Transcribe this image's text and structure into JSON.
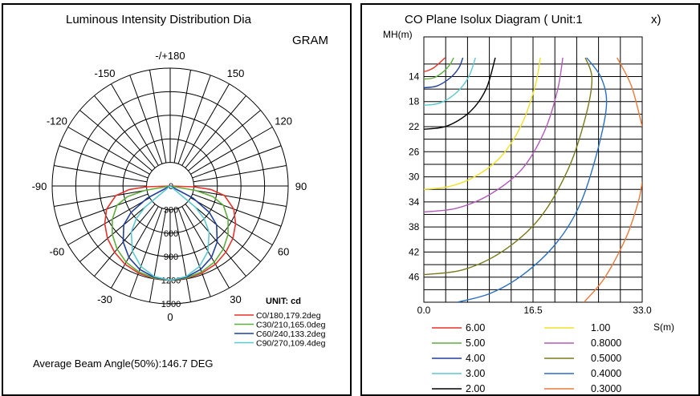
{
  "chart_data": [
    {
      "type": "polar",
      "title": "Luminous Intensity Distribution Dia",
      "title_line2": "GRAM",
      "angle_labels": [
        {
          "angle": 180,
          "text": "-/+180"
        },
        {
          "angle": -150,
          "text": "-150"
        },
        {
          "angle": 150,
          "text": "150"
        },
        {
          "angle": -120,
          "text": "-120"
        },
        {
          "angle": 120,
          "text": "120"
        },
        {
          "angle": -90,
          "text": "-90"
        },
        {
          "angle": 90,
          "text": "90"
        },
        {
          "angle": -60,
          "text": "-60"
        },
        {
          "angle": 60,
          "text": "60"
        },
        {
          "angle": -30,
          "text": "-30"
        },
        {
          "angle": 30,
          "text": "30"
        },
        {
          "angle": 0,
          "text": "0"
        }
      ],
      "radial_labels": [
        "0",
        "300",
        "600",
        "900",
        "1200",
        "1500"
      ],
      "radial_max": 1500,
      "unit_label": "UNIT: cd",
      "series": [
        {
          "name": "C0/180,179.2deg",
          "color": "#e8322a",
          "angles": [
            0,
            10,
            20,
            30,
            40,
            50,
            60,
            70,
            80,
            85,
            88,
            89.6
          ],
          "values": [
            1200,
            1195,
            1180,
            1150,
            1100,
            1040,
            960,
            860,
            700,
            520,
            300,
            0
          ]
        },
        {
          "name": "C30/210,165.0deg",
          "color": "#5fae3c",
          "angles": [
            0,
            10,
            20,
            30,
            40,
            50,
            60,
            70,
            76,
            80,
            82.5
          ],
          "values": [
            1200,
            1190,
            1165,
            1120,
            1050,
            960,
            850,
            720,
            560,
            330,
            0
          ]
        },
        {
          "name": "C60/240,133.2deg",
          "color": "#1f3f9a",
          "angles": [
            0,
            10,
            20,
            30,
            40,
            50,
            56,
            62,
            66.6
          ],
          "values": [
            1200,
            1180,
            1130,
            1050,
            930,
            770,
            600,
            330,
            0
          ]
        },
        {
          "name": "C90/270,109.4deg",
          "color": "#5cc8d0",
          "angles": [
            0,
            10,
            20,
            30,
            40,
            46,
            50,
            54.7
          ],
          "values": [
            1200,
            1170,
            1090,
            960,
            770,
            600,
            420,
            0
          ]
        }
      ],
      "footer": "Average Beam Angle(50%):146.7  DEG"
    },
    {
      "type": "contour",
      "title": "CO Plane Isolux Diagram ( Unit:1",
      "title_suffix": "x)",
      "ylabel": "MH(m)",
      "xlabel": "S(m)",
      "x_ticks": [
        "0.0",
        "16.5",
        "33.0"
      ],
      "xlim": [
        0,
        33
      ],
      "y_ticks": [
        "14",
        "18",
        "22",
        "26",
        "30",
        "34",
        "38",
        "42",
        "46"
      ],
      "ylim": [
        11,
        50
      ],
      "levels": [
        {
          "label": "6.00",
          "value": 6.0,
          "color": "#e8322a"
        },
        {
          "label": "5.00",
          "value": 5.0,
          "color": "#5fae3c"
        },
        {
          "label": "4.00",
          "value": 4.0,
          "color": "#1f3f9a"
        },
        {
          "label": "3.00",
          "value": 3.0,
          "color": "#5cc8d0"
        },
        {
          "label": "2.00",
          "value": 2.0,
          "color": "#000000"
        },
        {
          "label": "1.00",
          "value": 1.0,
          "color": "#f0e22a"
        },
        {
          "label": "0.8000",
          "value": 0.8,
          "color": "#b05cb8"
        },
        {
          "label": "0.5000",
          "value": 0.5,
          "color": "#7a7a1a"
        },
        {
          "label": "0.4000",
          "value": 0.4,
          "color": "#2a6fc0"
        },
        {
          "label": "0.3000",
          "value": 0.3,
          "color": "#ec7a3a"
        }
      ],
      "contours": [
        {
          "level": 6.0,
          "color": "#e8322a",
          "x": [
            0,
            0.5,
            1.5,
            2.5,
            3.2
          ],
          "y": [
            13.2,
            13.1,
            12.6,
            11.7,
            11.0
          ]
        },
        {
          "level": 5.0,
          "color": "#5fae3c",
          "x": [
            0,
            1.5,
            3.0,
            4.0,
            4.5
          ],
          "y": [
            14.4,
            14.2,
            13.2,
            12.0,
            11.0
          ]
        },
        {
          "level": 4.0,
          "color": "#1f3f9a",
          "x": [
            0,
            2.0,
            4.0,
            5.3,
            5.9
          ],
          "y": [
            15.8,
            15.5,
            14.2,
            12.6,
            11.0
          ]
        },
        {
          "level": 3.0,
          "color": "#5cc8d0",
          "x": [
            0,
            2.5,
            5.0,
            6.8,
            7.8
          ],
          "y": [
            18.6,
            18.2,
            16.5,
            14.0,
            11.0
          ]
        },
        {
          "level": 2.0,
          "color": "#000000",
          "x": [
            0,
            3.5,
            7.0,
            9.4,
            10.8
          ],
          "y": [
            22.4,
            21.9,
            19.6,
            16.0,
            11.0
          ]
        },
        {
          "level": 1.0,
          "color": "#f0e22a",
          "x": [
            0,
            4.0,
            8.0,
            11.8,
            14.8,
            16.8,
            17.6
          ],
          "y": [
            32.0,
            31.5,
            29.8,
            26.6,
            21.6,
            15.6,
            11.0
          ]
        },
        {
          "level": 0.8,
          "color": "#b05cb8",
          "x": [
            0,
            5.0,
            10.0,
            14.8,
            18.2,
            20.2,
            21.0
          ],
          "y": [
            35.6,
            35.0,
            32.8,
            28.8,
            22.8,
            16.2,
            11.0
          ]
        },
        {
          "level": 0.5,
          "color": "#7a7a1a",
          "x": [
            0,
            6.0,
            12.0,
            17.5,
            21.8,
            24.4,
            25.4,
            24.4
          ],
          "y": [
            45.6,
            44.8,
            41.8,
            36.6,
            28.8,
            20.6,
            14.4,
            11.0
          ]
        },
        {
          "level": 0.4,
          "color": "#2a6fc0",
          "x": [
            5.0,
            10.0,
            15.0,
            20.0,
            23.6,
            26.2,
            27.6,
            26.8,
            24.6
          ],
          "y": [
            50.0,
            48.6,
            45.6,
            40.6,
            34.4,
            26.0,
            18.6,
            14.2,
            11.0
          ]
        },
        {
          "level": 0.3,
          "color": "#ec7a3a",
          "x": [
            24.2,
            27.4,
            30.6,
            32.4,
            33.0
          ],
          "y": [
            50.0,
            46.0,
            39.6,
            34.0,
            30.8
          ]
        },
        {
          "level": 0.3,
          "color": "#ec7a3a",
          "x": [
            29.2,
            31.4,
            33.0
          ],
          "y": [
            11.0,
            15.6,
            22.0
          ]
        }
      ]
    }
  ]
}
